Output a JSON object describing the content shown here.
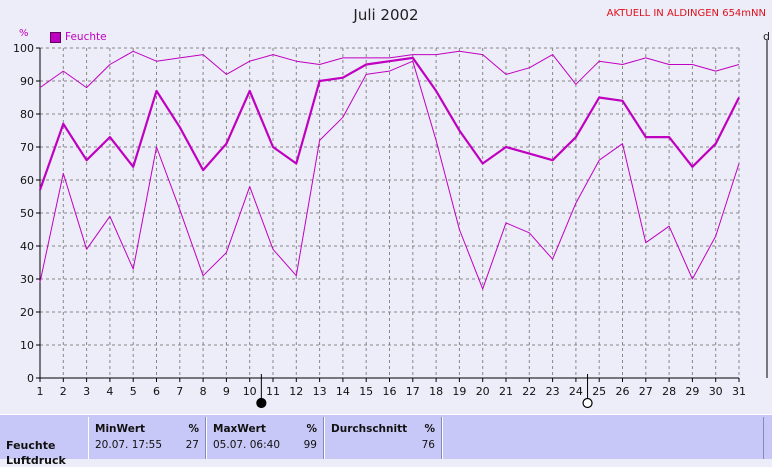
{
  "header": {
    "title": "Juli 2002",
    "station": "AKTUELL IN ALDINGEN 654mNN",
    "unit_left": "%",
    "unit_right": "d"
  },
  "colors": {
    "series": "#c000c0",
    "grid": "#888888",
    "axis": "#000000"
  },
  "chart_data": {
    "type": "line",
    "title": "Juli 2002",
    "ylabel": "%",
    "ylim": [
      0,
      100
    ],
    "yticks": [
      0,
      10,
      20,
      30,
      40,
      50,
      60,
      70,
      80,
      90,
      100
    ],
    "grid": true,
    "legend": "top-left",
    "x": [
      1,
      2,
      3,
      4,
      5,
      6,
      7,
      8,
      9,
      10,
      11,
      12,
      13,
      14,
      15,
      16,
      17,
      18,
      19,
      20,
      21,
      22,
      23,
      24,
      25,
      26,
      27,
      28,
      29,
      30,
      31
    ],
    "series": [
      {
        "name": "Feuchte",
        "role": "mean",
        "values": [
          57,
          77,
          66,
          73,
          64,
          87,
          76,
          63,
          71,
          87,
          70,
          65,
          90,
          91,
          95,
          96,
          97,
          87,
          75,
          65,
          70,
          68,
          66,
          73,
          85,
          84,
          73,
          73,
          64,
          71,
          85
        ]
      },
      {
        "role": "max",
        "values": [
          88,
          93,
          88,
          95,
          99,
          96,
          97,
          98,
          92,
          96,
          98,
          96,
          95,
          97,
          97,
          97,
          98,
          98,
          99,
          98,
          92,
          94,
          98,
          89,
          96,
          95,
          97,
          95,
          95,
          93,
          95
        ]
      },
      {
        "role": "min",
        "values": [
          29,
          62,
          39,
          49,
          33,
          70,
          51,
          31,
          38,
          58,
          39,
          31,
          72,
          79,
          92,
          93,
          96,
          72,
          45,
          27,
          47,
          44,
          36,
          53,
          66,
          71,
          41,
          46,
          30,
          43,
          65
        ]
      }
    ],
    "moon_phases": [
      {
        "day": 10.5,
        "phase": "full"
      },
      {
        "day": 24.5,
        "phase": "new"
      }
    ]
  },
  "stats": {
    "row_label": "Feuchte",
    "row_label_2": "Luftdruck",
    "min": {
      "header": "MinWert",
      "unit": "%",
      "time": "20.07.  17:55",
      "value": "27"
    },
    "max": {
      "header": "MaxWert",
      "unit": "%",
      "time": "05.07.  06:40",
      "value": "99"
    },
    "avg": {
      "header": "Durchschnitt",
      "unit": "%",
      "value": "76"
    }
  }
}
